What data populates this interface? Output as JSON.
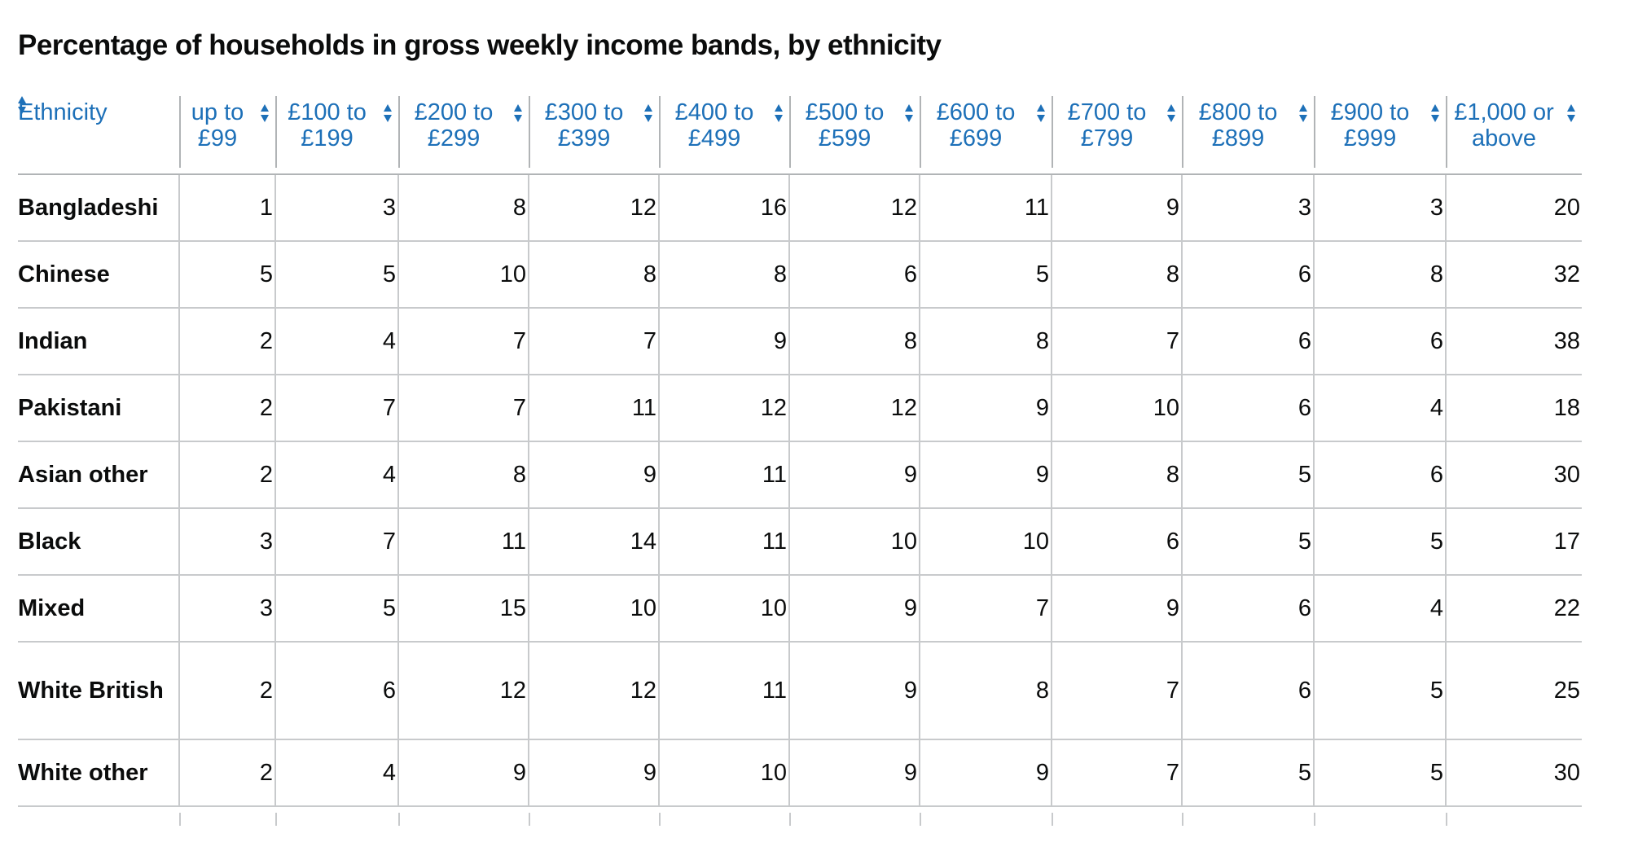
{
  "table": {
    "caption": "Percentage of households in gross weekly income bands, by ethnicity",
    "columns": [
      "Ethnicity",
      "up to £99",
      "£100 to £199",
      "£200 to £299",
      "£300 to £399",
      "£400 to £499",
      "£500 to £599",
      "£600 to £699",
      "£700 to £799",
      "£800 to £899",
      "£900 to £999",
      "£1,000 or above"
    ],
    "sort_icon": "sort-arrows-icon",
    "link_color": "#1d70b8",
    "rows": [
      {
        "label": "Bangladeshi",
        "values": [
          "1",
          "3",
          "8",
          "12",
          "16",
          "12",
          "11",
          "9",
          "3",
          "3",
          "20"
        ]
      },
      {
        "label": "Chinese",
        "values": [
          "5",
          "5",
          "10",
          "8",
          "8",
          "6",
          "5",
          "8",
          "6",
          "8",
          "32"
        ]
      },
      {
        "label": "Indian",
        "values": [
          "2",
          "4",
          "7",
          "7",
          "9",
          "8",
          "8",
          "7",
          "6",
          "6",
          "38"
        ]
      },
      {
        "label": "Pakistani",
        "values": [
          "2",
          "7",
          "7",
          "11",
          "12",
          "12",
          "9",
          "10",
          "6",
          "4",
          "18"
        ]
      },
      {
        "label": "Asian other",
        "values": [
          "2",
          "4",
          "8",
          "9",
          "11",
          "9",
          "9",
          "8",
          "5",
          "6",
          "30"
        ]
      },
      {
        "label": "Black",
        "values": [
          "3",
          "7",
          "11",
          "14",
          "11",
          "10",
          "10",
          "6",
          "5",
          "5",
          "17"
        ]
      },
      {
        "label": "Mixed",
        "values": [
          "3",
          "5",
          "15",
          "10",
          "10",
          "9",
          "7",
          "9",
          "6",
          "4",
          "22"
        ]
      },
      {
        "label": "White British",
        "values": [
          "2",
          "6",
          "12",
          "12",
          "11",
          "9",
          "8",
          "7",
          "6",
          "5",
          "25"
        ]
      },
      {
        "label": "White other",
        "values": [
          "2",
          "4",
          "9",
          "9",
          "10",
          "9",
          "9",
          "7",
          "5",
          "5",
          "30"
        ]
      }
    ]
  }
}
